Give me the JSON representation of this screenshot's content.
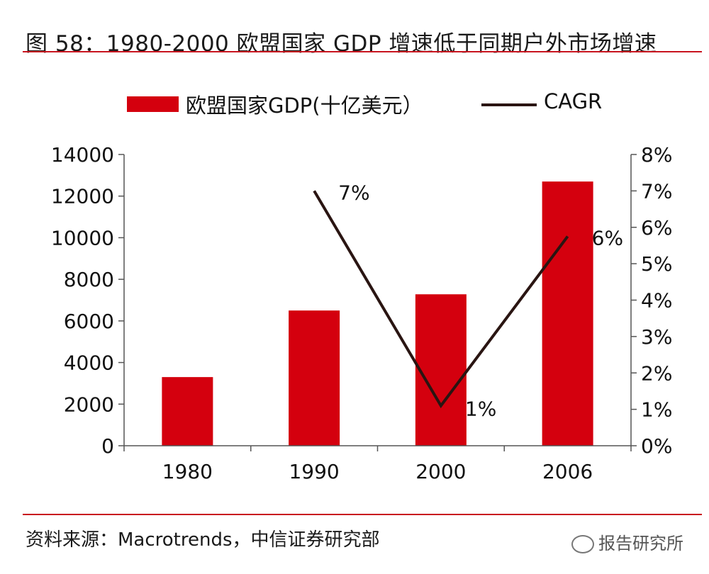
{
  "title": "图 58：1980-2000 欧盟国家 GDP 增速低于同期户外市场增速",
  "source": "资料来源：Macrotrends，中信证券研究部",
  "watermark": "报告研究所",
  "colors": {
    "accent": "#c8141e",
    "bar": "#d4000e",
    "line": "#2a1512"
  },
  "chart_data": {
    "type": "bar",
    "categories": [
      "1980",
      "1990",
      "2000",
      "2006"
    ],
    "series": [
      {
        "name": "欧盟国家GDP(十亿美元）",
        "type": "bar",
        "axis": "left",
        "values": [
          3300,
          6500,
          7280,
          12700
        ]
      },
      {
        "name": "CAGR",
        "type": "line",
        "axis": "right",
        "points": [
          {
            "x": "1990",
            "y": 0.07
          },
          {
            "x": "2000",
            "y": 0.011
          },
          {
            "x": "2006",
            "y": 0.0575
          }
        ],
        "labels": [
          "7%",
          "1%",
          "6%"
        ]
      }
    ],
    "y_left": {
      "min": 0,
      "max": 14000,
      "ticks": [
        "0",
        "2000",
        "4000",
        "6000",
        "8000",
        "10000",
        "12000",
        "14000"
      ]
    },
    "y_right": {
      "min": 0,
      "max": 0.08,
      "ticks": [
        "0%",
        "1%",
        "2%",
        "3%",
        "4%",
        "5%",
        "6%",
        "7%",
        "8%"
      ]
    },
    "legend": "top",
    "grid": false
  }
}
